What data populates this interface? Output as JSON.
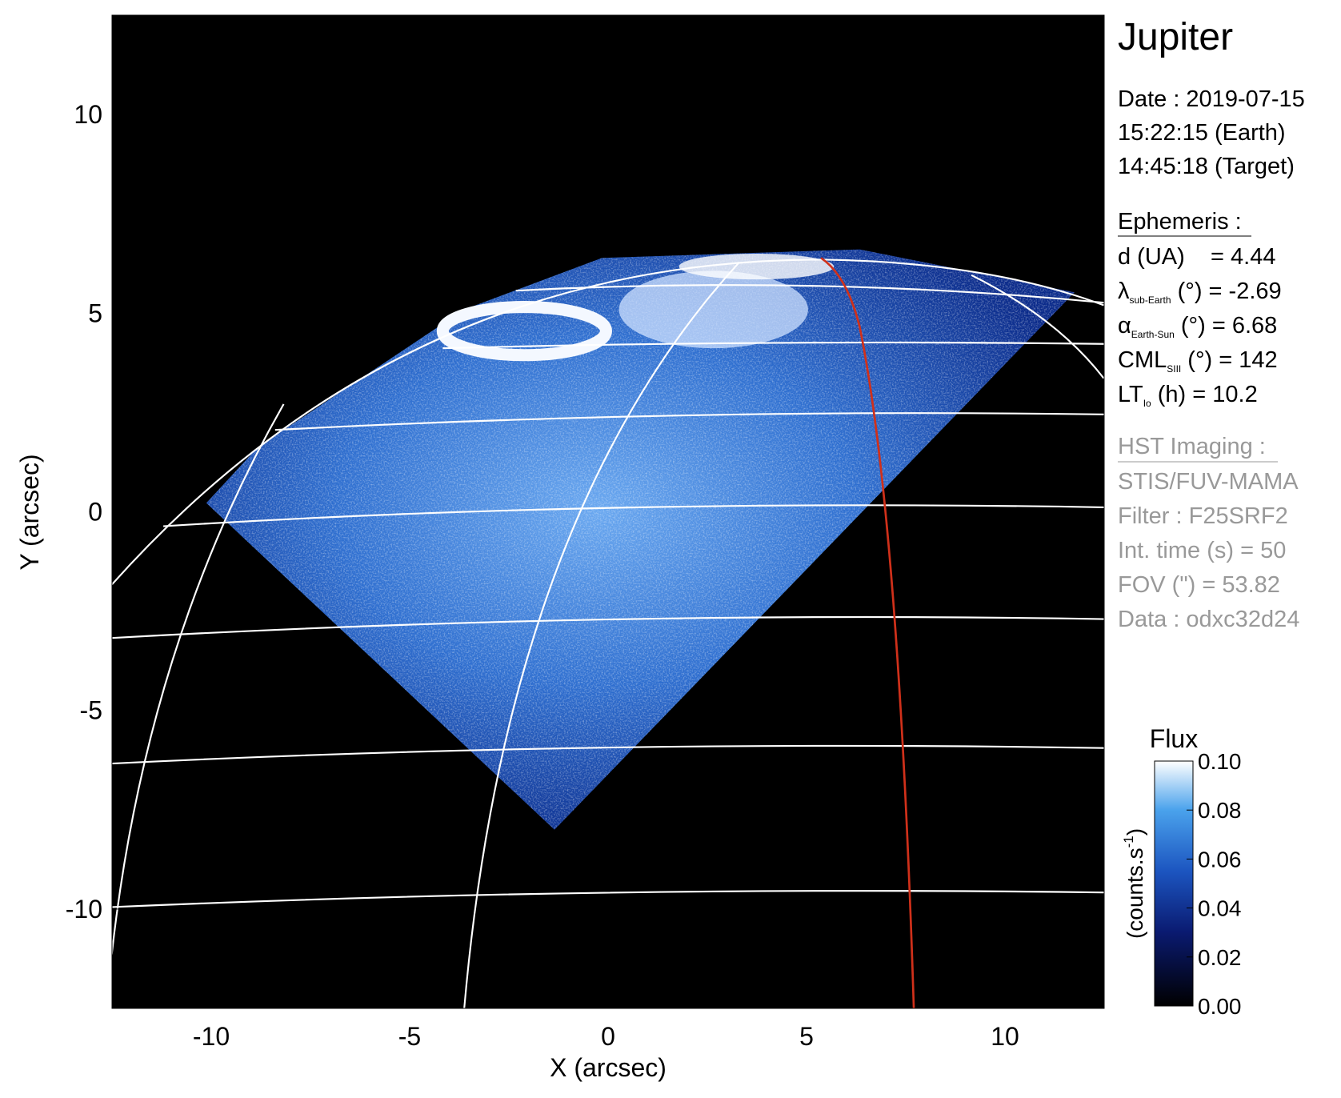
{
  "chart_data": {
    "type": "image",
    "title": "Jupiter",
    "xlabel": "X (arcsec)",
    "ylabel": "Y (arcsec)",
    "xlim": [
      -12.5,
      12.5
    ],
    "ylim": [
      -12.5,
      12.5
    ],
    "xticks": [
      -10,
      -5,
      0,
      5,
      10
    ],
    "yticks": [
      -10,
      -5,
      0,
      5,
      10
    ],
    "colorbar": {
      "title": "Flux",
      "label": {
        "text": "(counts.s",
        "sup": "-1",
        "end": ")"
      },
      "clim": [
        0,
        0.1
      ],
      "ticks": [
        {
          "value": 0,
          "label": "0.00"
        },
        0.02,
        0.04,
        0.06,
        0.08,
        {
          "value": 0.1,
          "label": "0.10"
        }
      ]
    },
    "info": {
      "date_lines": [
        "Date : 2019-07-15",
        "15:22:15 (Earth)",
        "14:45:18 (Target)"
      ],
      "ephemeris_heading": "Ephemeris :",
      "ephemeris": [
        {
          "main": "d (UA)    = 4.44"
        },
        {
          "main": "λ",
          "sub": "sub-Earth",
          "rest": " (°) = -2.69"
        },
        {
          "main": "α",
          "sub": "Earth-Sun",
          "rest": " (°) = 6.68"
        },
        {
          "main": "CML",
          "sub": "SIII",
          "rest": " (°) = 142"
        },
        {
          "main": "LT",
          "sub": "Io",
          "rest": " (h) = 10.2"
        }
      ],
      "imaging_heading": "HST Imaging :",
      "imaging": [
        "STIS/FUV-MAMA",
        "Filter : F25SRF2",
        "Int. time (s) = 50",
        "FOV (\") = 53.82",
        "Data : odxc32d24"
      ]
    }
  }
}
